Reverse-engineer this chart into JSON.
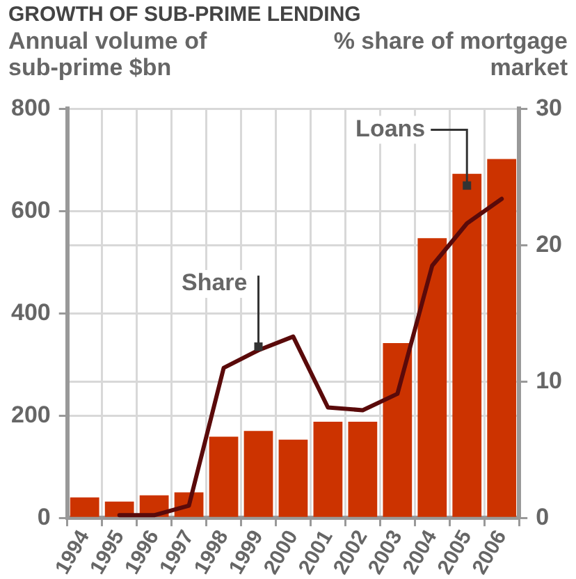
{
  "chart_data": {
    "type": "bar",
    "title": "GROWTH OF SUB-PRIME LENDING",
    "ylabel": "Annual volume of sub-prime $bn",
    "y2label": "% share of mortgage market",
    "categories": [
      "1994",
      "1995",
      "1996",
      "1997",
      "1998",
      "1999",
      "2000",
      "2001",
      "2002",
      "2003",
      "2004",
      "2005",
      "2006"
    ],
    "series": [
      {
        "color": "#cc3300",
        "values": [
          40,
          32,
          44,
          50,
          159,
          170,
          153,
          188,
          188,
          342,
          547,
          673,
          702
        ]
      },
      {
        "type": "line",
        "axis": "y2",
        "color": "#5a0a0a",
        "values": [
          null,
          0.2,
          0.2,
          0.9,
          11,
          12.3,
          13.3,
          8.1,
          7.9,
          9.1,
          18.5,
          21.6,
          23.4
        ]
      }
    ],
    "ylim": [
      0,
      800
    ],
    "yticks": [
      0,
      200,
      400,
      600,
      800
    ],
    "y2lim": [
      0,
      30
    ],
    "y2ticks": [
      0,
      10,
      20,
      30
    ],
    "grid": true,
    "marker": "none",
    "line_style": "solid",
    "annotations": [
      {
        "text": "Loans",
        "x": "2005",
        "y": 650
      },
      {
        "text": "Share",
        "x": "1999",
        "y": 335
      }
    ]
  }
}
